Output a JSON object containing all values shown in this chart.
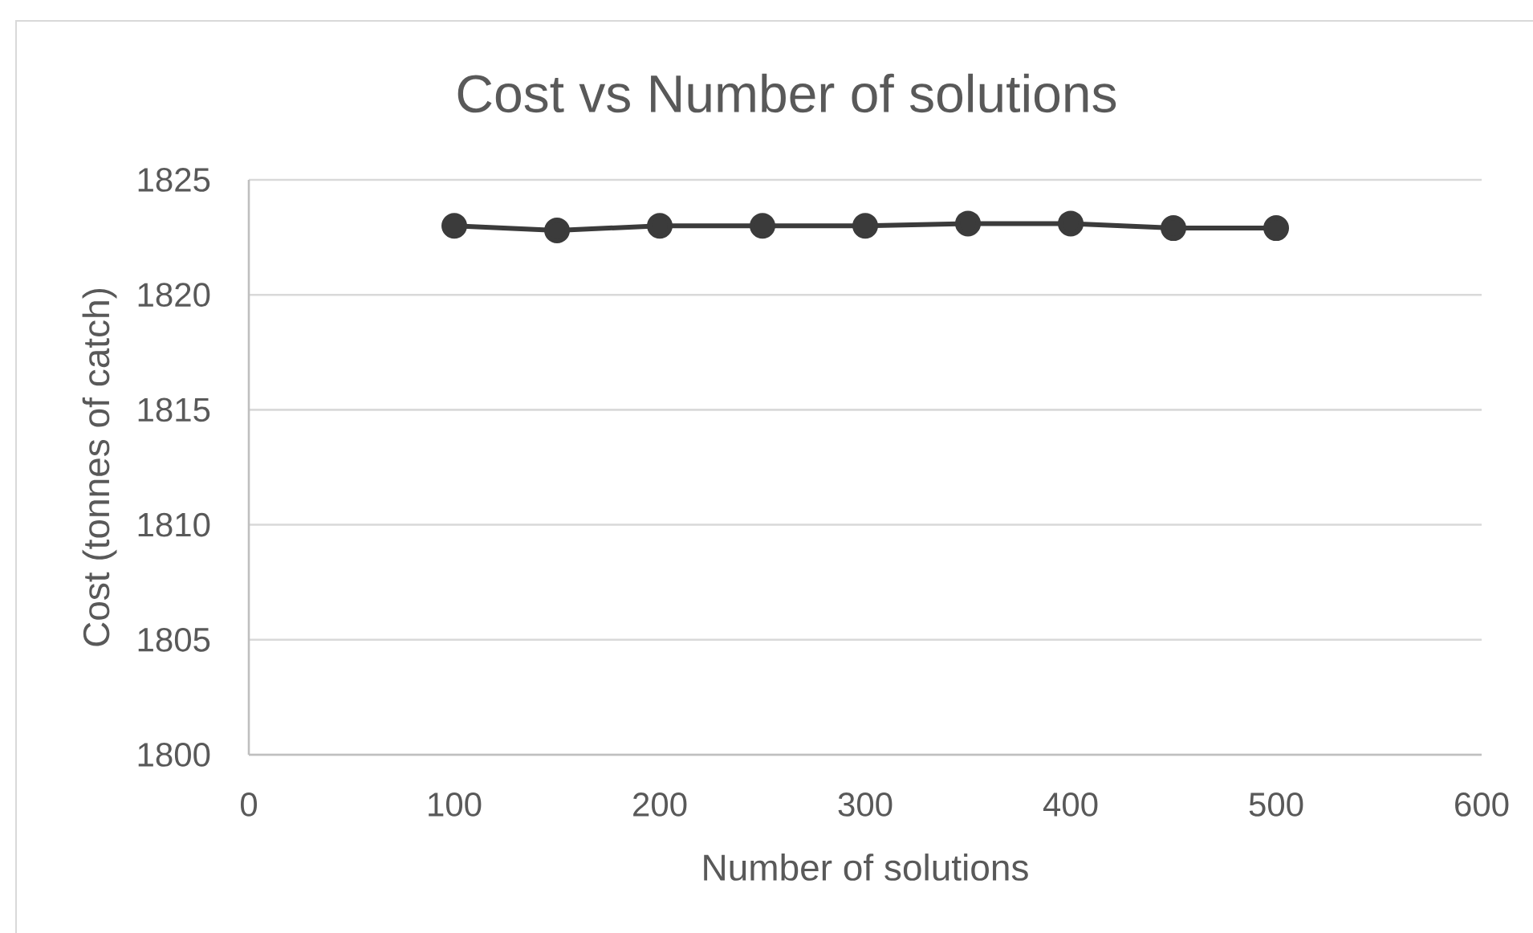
{
  "chart_data": {
    "type": "line",
    "title": "Cost vs Number of solutions",
    "xlabel": "Number of solutions",
    "ylabel": "Cost (tonnes of catch)",
    "x": [
      100,
      150,
      200,
      250,
      300,
      350,
      400,
      450,
      500
    ],
    "values": [
      1823.0,
      1822.8,
      1823.0,
      1823.0,
      1823.0,
      1823.1,
      1823.1,
      1822.9,
      1822.9
    ],
    "color": "#3b3b3b",
    "xlim": [
      0,
      600
    ],
    "xticks": [
      0,
      100,
      200,
      300,
      400,
      500,
      600
    ],
    "ylim": [
      1800,
      1825
    ],
    "yticks": [
      1800,
      1805,
      1810,
      1815,
      1820,
      1825
    ],
    "grid": "y",
    "marker": "circle",
    "line_style": "solid"
  }
}
